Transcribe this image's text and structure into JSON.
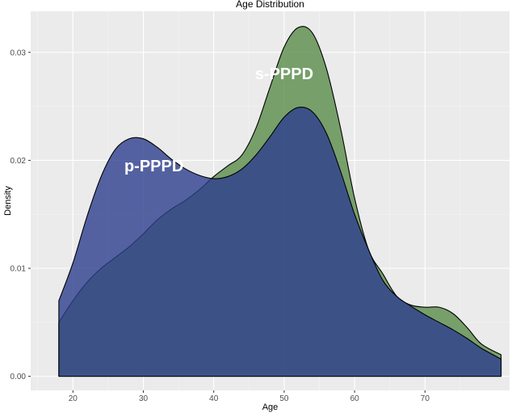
{
  "chart_data": {
    "type": "area",
    "title": "Age Distribution",
    "xlabel": "Age",
    "ylabel": "Density",
    "xlim": [
      14,
      82
    ],
    "ylim": [
      -0.0013,
      0.0338
    ],
    "xticks": [
      20,
      30,
      40,
      50,
      60,
      70
    ],
    "yticks": [
      0.0,
      0.01,
      0.02,
      0.03
    ],
    "ytick_labels": [
      "0.00",
      "0.01",
      "0.02",
      "0.03"
    ],
    "grid": true,
    "background": "#ebebeb",
    "series": [
      {
        "name": "s-PPPD",
        "color": "#5a8c4a",
        "x": [
          18,
          20,
          22,
          24,
          26,
          28,
          30,
          32,
          34,
          36,
          38,
          40,
          42,
          44,
          46,
          48,
          50,
          52,
          54,
          56,
          58,
          60,
          62,
          64,
          66,
          68,
          70,
          72,
          74,
          76,
          78,
          80.8
        ],
        "y": [
          0.005,
          0.007,
          0.0087,
          0.01,
          0.011,
          0.012,
          0.0132,
          0.0145,
          0.0155,
          0.0163,
          0.0173,
          0.0185,
          0.0195,
          0.0205,
          0.023,
          0.0268,
          0.0305,
          0.0323,
          0.0318,
          0.0285,
          0.023,
          0.0165,
          0.0117,
          0.0095,
          0.0074,
          0.0066,
          0.0064,
          0.0064,
          0.0058,
          0.0045,
          0.003,
          0.002
        ]
      },
      {
        "name": "p-PPPD",
        "color": "#2d3f8f",
        "x": [
          18,
          20,
          22,
          24,
          26,
          28,
          30,
          32,
          34,
          36,
          38,
          40,
          42,
          44,
          46,
          48,
          50,
          52,
          54,
          56,
          58,
          60,
          62,
          64,
          66,
          68,
          70,
          72,
          74,
          76,
          78,
          80.8
        ],
        "y": [
          0.007,
          0.0105,
          0.0148,
          0.0185,
          0.021,
          0.022,
          0.022,
          0.0212,
          0.0201,
          0.0192,
          0.0186,
          0.0183,
          0.0185,
          0.0192,
          0.0205,
          0.0222,
          0.024,
          0.0249,
          0.0245,
          0.0225,
          0.019,
          0.015,
          0.0117,
          0.0089,
          0.0074,
          0.0065,
          0.0057,
          0.005,
          0.0043,
          0.0035,
          0.0026,
          0.0016
        ]
      }
    ],
    "annotations": [
      {
        "text": "s-PPPD",
        "x": 50,
        "y": 0.0275
      },
      {
        "text": "p-PPPD",
        "x": 31.5,
        "y": 0.019
      }
    ]
  }
}
